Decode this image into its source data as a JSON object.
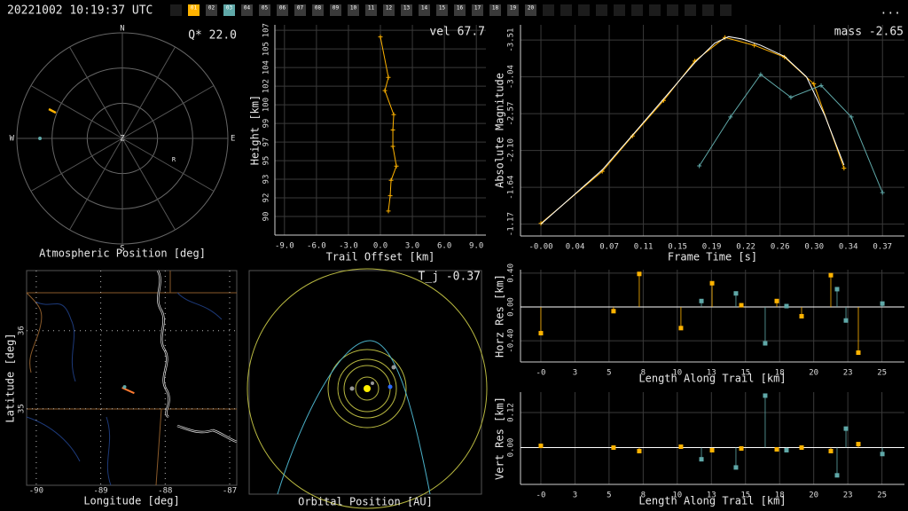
{
  "header": {
    "timestamp": "20221002 10:19:37 UTC",
    "tabs": [
      {
        "label": "01",
        "color": "#ffb300"
      },
      {
        "label": "02",
        "color": "#3a3a3a"
      },
      {
        "label": "03",
        "color": "#5fa8a8"
      },
      {
        "label": "04",
        "color": "#3a3a3a"
      },
      {
        "label": "05",
        "color": "#3a3a3a"
      },
      {
        "label": "06",
        "color": "#3a3a3a"
      },
      {
        "label": "07",
        "color": "#3a3a3a"
      },
      {
        "label": "08",
        "color": "#3a3a3a"
      },
      {
        "label": "09",
        "color": "#3a3a3a"
      },
      {
        "label": "10",
        "color": "#3a3a3a"
      },
      {
        "label": "11",
        "color": "#3a3a3a"
      },
      {
        "label": "12",
        "color": "#3a3a3a"
      },
      {
        "label": "13",
        "color": "#3a3a3a"
      },
      {
        "label": "14",
        "color": "#3a3a3a"
      },
      {
        "label": "15",
        "color": "#3a3a3a"
      },
      {
        "label": "16",
        "color": "#3a3a3a"
      },
      {
        "label": "17",
        "color": "#3a3a3a"
      },
      {
        "label": "18",
        "color": "#3a3a3a"
      },
      {
        "label": "19",
        "color": "#3a3a3a"
      },
      {
        "label": "20",
        "color": "#3a3a3a"
      }
    ],
    "menu": "..."
  },
  "chart_data": [
    {
      "type": "polar",
      "title": "Atmospheric Position [deg]",
      "annotation": "Q* 22.0",
      "directions": {
        "north": "N",
        "east": "E",
        "south": "S",
        "west": "W",
        "zenith": "Z"
      },
      "marker_label": "R",
      "rlim": [
        0,
        90
      ],
      "rticks": [
        30,
        60,
        90
      ],
      "series": [
        {
          "color": "#ffb300",
          "x": [
            291.7,
            291.1
          ],
          "values": [
            67.5,
            60.8
          ]
        },
        {
          "color": "#5fa8a8",
          "x": [
            270
          ],
          "values": [
            70.3
          ]
        }
      ]
    },
    {
      "type": "line",
      "annotation": "vel 67.7",
      "xlabel": "Trail Offset [km]",
      "ylabel": "Height [km]",
      "xlim": [
        -9.9,
        9.9
      ],
      "xticks": [
        {
          "value": -9,
          "label": "-9.0"
        },
        {
          "value": -6,
          "label": "-6.0"
        },
        {
          "value": -3,
          "label": "-3.0"
        },
        {
          "value": 0,
          "label": "0.0"
        },
        {
          "value": 3,
          "label": "3.0"
        },
        {
          "value": 6,
          "label": "6.0"
        },
        {
          "value": 9,
          "label": "9.0"
        }
      ],
      "ylim": [
        88.3,
        107.5
      ],
      "yticks": [
        90,
        {
          "value": 91.7,
          "label": "92"
        },
        {
          "value": 93.4,
          "label": "93"
        },
        {
          "value": 95.1,
          "label": "95"
        },
        {
          "value": 96.8,
          "label": "97"
        },
        {
          "value": 98.5,
          "label": "99"
        },
        {
          "value": 100.2,
          "label": "100"
        },
        {
          "value": 101.9,
          "label": "102"
        },
        {
          "value": 103.6,
          "label": "104"
        },
        {
          "value": 105.3,
          "label": "105"
        },
        107
      ],
      "grid": true,
      "series": [
        {
          "color": "#ffb300",
          "markers": true,
          "x": [
            0,
            0.75,
            0.42,
            1.25,
            1.17,
            1.17,
            1.5,
            1.0,
            0.92,
            0.75
          ],
          "values": [
            106.4,
            102.7,
            101.5,
            99.3,
            97.9,
            96.4,
            94.6,
            93.3,
            91.9,
            90.5
          ]
        }
      ]
    },
    {
      "type": "line",
      "annotation": "mass -2.65",
      "xlabel": "Frame Time [s]",
      "ylabel": "Absolute Magnitude",
      "xlim": [
        -0.0223,
        0.397
      ],
      "xticks": [
        {
          "value": 0,
          "label": "-0.00"
        },
        {
          "value": 0.0373,
          "label": "0.04"
        },
        {
          "value": 0.0746,
          "label": "0.07"
        },
        {
          "value": 0.1119,
          "label": "0.11"
        },
        {
          "value": 0.1492,
          "label": "0.15"
        },
        {
          "value": 0.1865,
          "label": "0.19"
        },
        {
          "value": 0.2238,
          "label": "0.22"
        },
        {
          "value": 0.2611,
          "label": "0.26"
        },
        {
          "value": 0.2984,
          "label": "0.30"
        },
        {
          "value": 0.3357,
          "label": "0.34"
        },
        {
          "value": 0.373,
          "label": "0.37"
        }
      ],
      "ylim": [
        -1.02,
        -3.7
      ],
      "yticks": [
        -1.17,
        {
          "value": -1.6375,
          "label": "-1.64"
        },
        {
          "value": -2.105,
          "label": "-2.10"
        },
        {
          "value": -2.5725,
          "label": "-2.57"
        },
        {
          "value": -3.04,
          "label": "-3.04"
        },
        {
          "value": -3.5075,
          "label": "-3.51"
        }
      ],
      "grid": true,
      "series": [
        {
          "color": "#ffb300",
          "markers": true,
          "x": [
            0,
            0.067,
            0.1,
            0.134,
            0.168,
            0.201,
            0.233,
            0.266,
            0.298,
            0.331
          ],
          "values": [
            -1.18,
            -1.84,
            -2.29,
            -2.74,
            -3.24,
            -3.54,
            -3.44,
            -3.29,
            -2.95,
            -1.88
          ]
        },
        {
          "color": "#ffffff",
          "markers": false,
          "x": [
            0,
            0.034,
            0.067,
            0.1,
            0.134,
            0.168,
            0.19,
            0.205,
            0.22,
            0.24,
            0.266,
            0.29,
            0.31,
            0.331
          ],
          "values": [
            -1.17,
            -1.52,
            -1.86,
            -2.3,
            -2.76,
            -3.22,
            -3.47,
            -3.55,
            -3.52,
            -3.44,
            -3.3,
            -3.04,
            -2.55,
            -1.92
          ]
        },
        {
          "color": "#5fa8a8",
          "markers": true,
          "x": [
            0.173,
            0.207,
            0.24,
            0.273,
            0.306,
            0.339,
            0.373
          ],
          "values": [
            -1.91,
            -2.53,
            -3.07,
            -2.78,
            -2.93,
            -2.53,
            -1.57
          ]
        }
      ]
    },
    {
      "type": "scatter",
      "xlabel": "Longitude [deg]",
      "ylabel": "Latitude [deg]",
      "xlim": [
        -90.15,
        -86.89
      ],
      "xticks": [
        -90,
        -89,
        -88,
        -87
      ],
      "ylim": [
        34.02,
        36.77
      ],
      "yticks": [
        35,
        36
      ],
      "series": [
        {
          "color": "#ff7a30",
          "line": true,
          "x": [
            -88.67,
            -88.48
          ],
          "values": [
            35.27,
            35.2
          ]
        },
        {
          "color": "#5fa8a8",
          "line": false,
          "x": [
            -88.63
          ],
          "values": [
            35.28
          ]
        }
      ]
    },
    {
      "type": "orbit",
      "xlabel": "Orbital Position [AU]",
      "annotation": "T_j -0.37"
    },
    {
      "type": "stem",
      "xlabel": "Length Along Trail [km]",
      "ylabel": "Horz Res [km]",
      "xlim": [
        -1.51,
        26.97
      ],
      "xticks": [
        {
          "value": 0,
          "label": "-0"
        },
        {
          "value": 2.53,
          "label": "3"
        },
        {
          "value": 5.06,
          "label": "5"
        },
        {
          "value": 7.59,
          "label": "8"
        },
        {
          "value": 10.12,
          "label": "10"
        },
        {
          "value": 12.65,
          "label": "13"
        },
        {
          "value": 15.18,
          "label": "15"
        },
        {
          "value": 17.71,
          "label": "18"
        },
        {
          "value": 20.24,
          "label": "20"
        },
        {
          "value": 22.77,
          "label": "23"
        },
        {
          "value": 25.3,
          "label": "25"
        }
      ],
      "ylim": [
        -0.65,
        0.44
      ],
      "yticks": [
        {
          "value": -0.4,
          "label": "-0.40"
        },
        {
          "value": 0,
          "label": "0.00"
        },
        {
          "value": 0.4,
          "label": "0.40"
        }
      ],
      "grid": true,
      "series": [
        {
          "color": "#ffb300",
          "x": [
            0,
            5.39,
            7.3,
            10.39,
            12.7,
            14.87,
            17.5,
            19.34,
            21.51,
            23.55
          ],
          "values": [
            -0.31,
            -0.05,
            0.39,
            -0.25,
            0.28,
            0.02,
            0.07,
            -0.11,
            0.375,
            -0.54
          ]
        },
        {
          "color": "#5fa8a8",
          "x": [
            11.91,
            14.47,
            16.64,
            18.22,
            21.97,
            22.63,
            25.33
          ],
          "values": [
            0.07,
            0.16,
            -0.43,
            0.01,
            0.21,
            -0.16,
            0.04
          ]
        }
      ]
    },
    {
      "type": "stem",
      "xlabel": "Length Along Trail [km]",
      "ylabel": "Vert Res [km]",
      "xlim": [
        -1.51,
        26.97
      ],
      "xticks": [
        {
          "value": 0,
          "label": "-0"
        },
        {
          "value": 2.53,
          "label": "3"
        },
        {
          "value": 5.06,
          "label": "5"
        },
        {
          "value": 7.59,
          "label": "8"
        },
        {
          "value": 10.12,
          "label": "10"
        },
        {
          "value": 12.65,
          "label": "13"
        },
        {
          "value": 15.18,
          "label": "15"
        },
        {
          "value": 17.71,
          "label": "18"
        },
        {
          "value": 20.24,
          "label": "20"
        },
        {
          "value": 22.77,
          "label": "23"
        },
        {
          "value": 25.3,
          "label": "25"
        }
      ],
      "ylim": [
        -0.126,
        0.19
      ],
      "yticks": [
        {
          "value": 0,
          "label": "0.00"
        },
        {
          "value": 0.12,
          "label": "0.12"
        }
      ],
      "grid": true,
      "series": [
        {
          "color": "#ffb300",
          "x": [
            0,
            5.39,
            7.3,
            10.39,
            12.7,
            14.87,
            17.5,
            19.34,
            21.51,
            23.55
          ],
          "values": [
            0.006,
            0,
            -0.012,
            0.003,
            -0.009,
            -0.003,
            -0.006,
            0,
            -0.012,
            0.012
          ]
        },
        {
          "color": "#5fa8a8",
          "x": [
            11.91,
            14.47,
            16.64,
            18.22,
            21.97,
            22.63,
            25.33
          ],
          "values": [
            -0.04,
            -0.068,
            0.178,
            -0.009,
            -0.095,
            0.065,
            -0.022
          ]
        }
      ]
    }
  ]
}
